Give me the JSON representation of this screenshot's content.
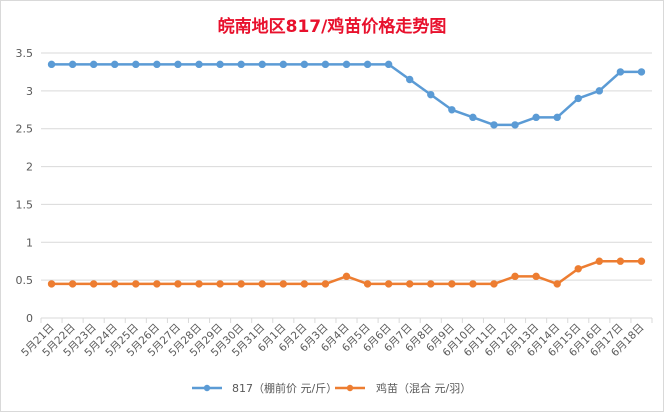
{
  "chart_data": {
    "type": "line",
    "title": "皖南地区817/鸡苗价格走势图",
    "xlabel": "",
    "ylabel": "",
    "ylim": [
      0,
      3.5
    ],
    "yticks": [
      "0",
      "0.5",
      "1",
      "1.5",
      "2",
      "2.5",
      "3",
      "3.5"
    ],
    "grid": true,
    "legend_position": "bottom",
    "categories": [
      "5月21日",
      "5月22日",
      "5月23日",
      "5月24日",
      "5月25日",
      "5月26日",
      "5月27日",
      "5月28日",
      "5月29日",
      "5月30日",
      "5月31日",
      "6月1日",
      "6月2日",
      "6月3日",
      "6月4日",
      "6月5日",
      "6月6日",
      "6月7日",
      "6月8日",
      "6月9日",
      "6月10日",
      "6月11日",
      "6月12日",
      "6月13日",
      "6月14日",
      "6月15日",
      "6月16日",
      "6月17日",
      "6月18日"
    ],
    "series": [
      {
        "name": "817（棚前价 元/斤）",
        "color": "#5b9bd5",
        "values": [
          3.35,
          3.35,
          3.35,
          3.35,
          3.35,
          3.35,
          3.35,
          3.35,
          3.35,
          3.35,
          3.35,
          3.35,
          3.35,
          3.35,
          3.35,
          3.35,
          3.35,
          3.15,
          2.95,
          2.75,
          2.65,
          2.55,
          2.55,
          2.65,
          2.65,
          2.9,
          3.0,
          3.25,
          3.25
        ]
      },
      {
        "name": "鸡苗（混合 元/羽）",
        "color": "#ed7d31",
        "values": [
          0.45,
          0.45,
          0.45,
          0.45,
          0.45,
          0.45,
          0.45,
          0.45,
          0.45,
          0.45,
          0.45,
          0.45,
          0.45,
          0.45,
          0.55,
          0.45,
          0.45,
          0.45,
          0.45,
          0.45,
          0.45,
          0.45,
          0.55,
          0.55,
          0.45,
          0.65,
          0.75,
          0.75,
          0.75
        ]
      }
    ]
  }
}
